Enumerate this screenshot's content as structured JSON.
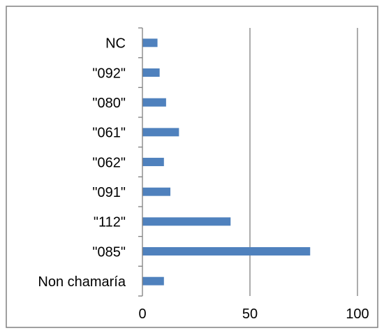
{
  "chart_data": {
    "type": "bar",
    "orientation": "horizontal",
    "categories": [
      "Non chamaría",
      "\"085\"",
      "\"112\"",
      "\"091\"",
      "\"062\"",
      "\"061\"",
      "\"080\"",
      "\"092\"",
      "NC"
    ],
    "values": [
      10,
      78,
      41,
      13,
      10,
      17,
      11,
      8,
      7
    ],
    "title": "",
    "xlabel": "",
    "ylabel": "",
    "xlim": [
      0,
      100
    ],
    "xticks": [
      0,
      50,
      100
    ],
    "xtick_labels": [
      "0",
      "50",
      "100"
    ],
    "grid": "vertical-major",
    "legend": "none",
    "bar_color": "#4F81BD",
    "grid_color": "#808080",
    "border_color": "#808080"
  }
}
